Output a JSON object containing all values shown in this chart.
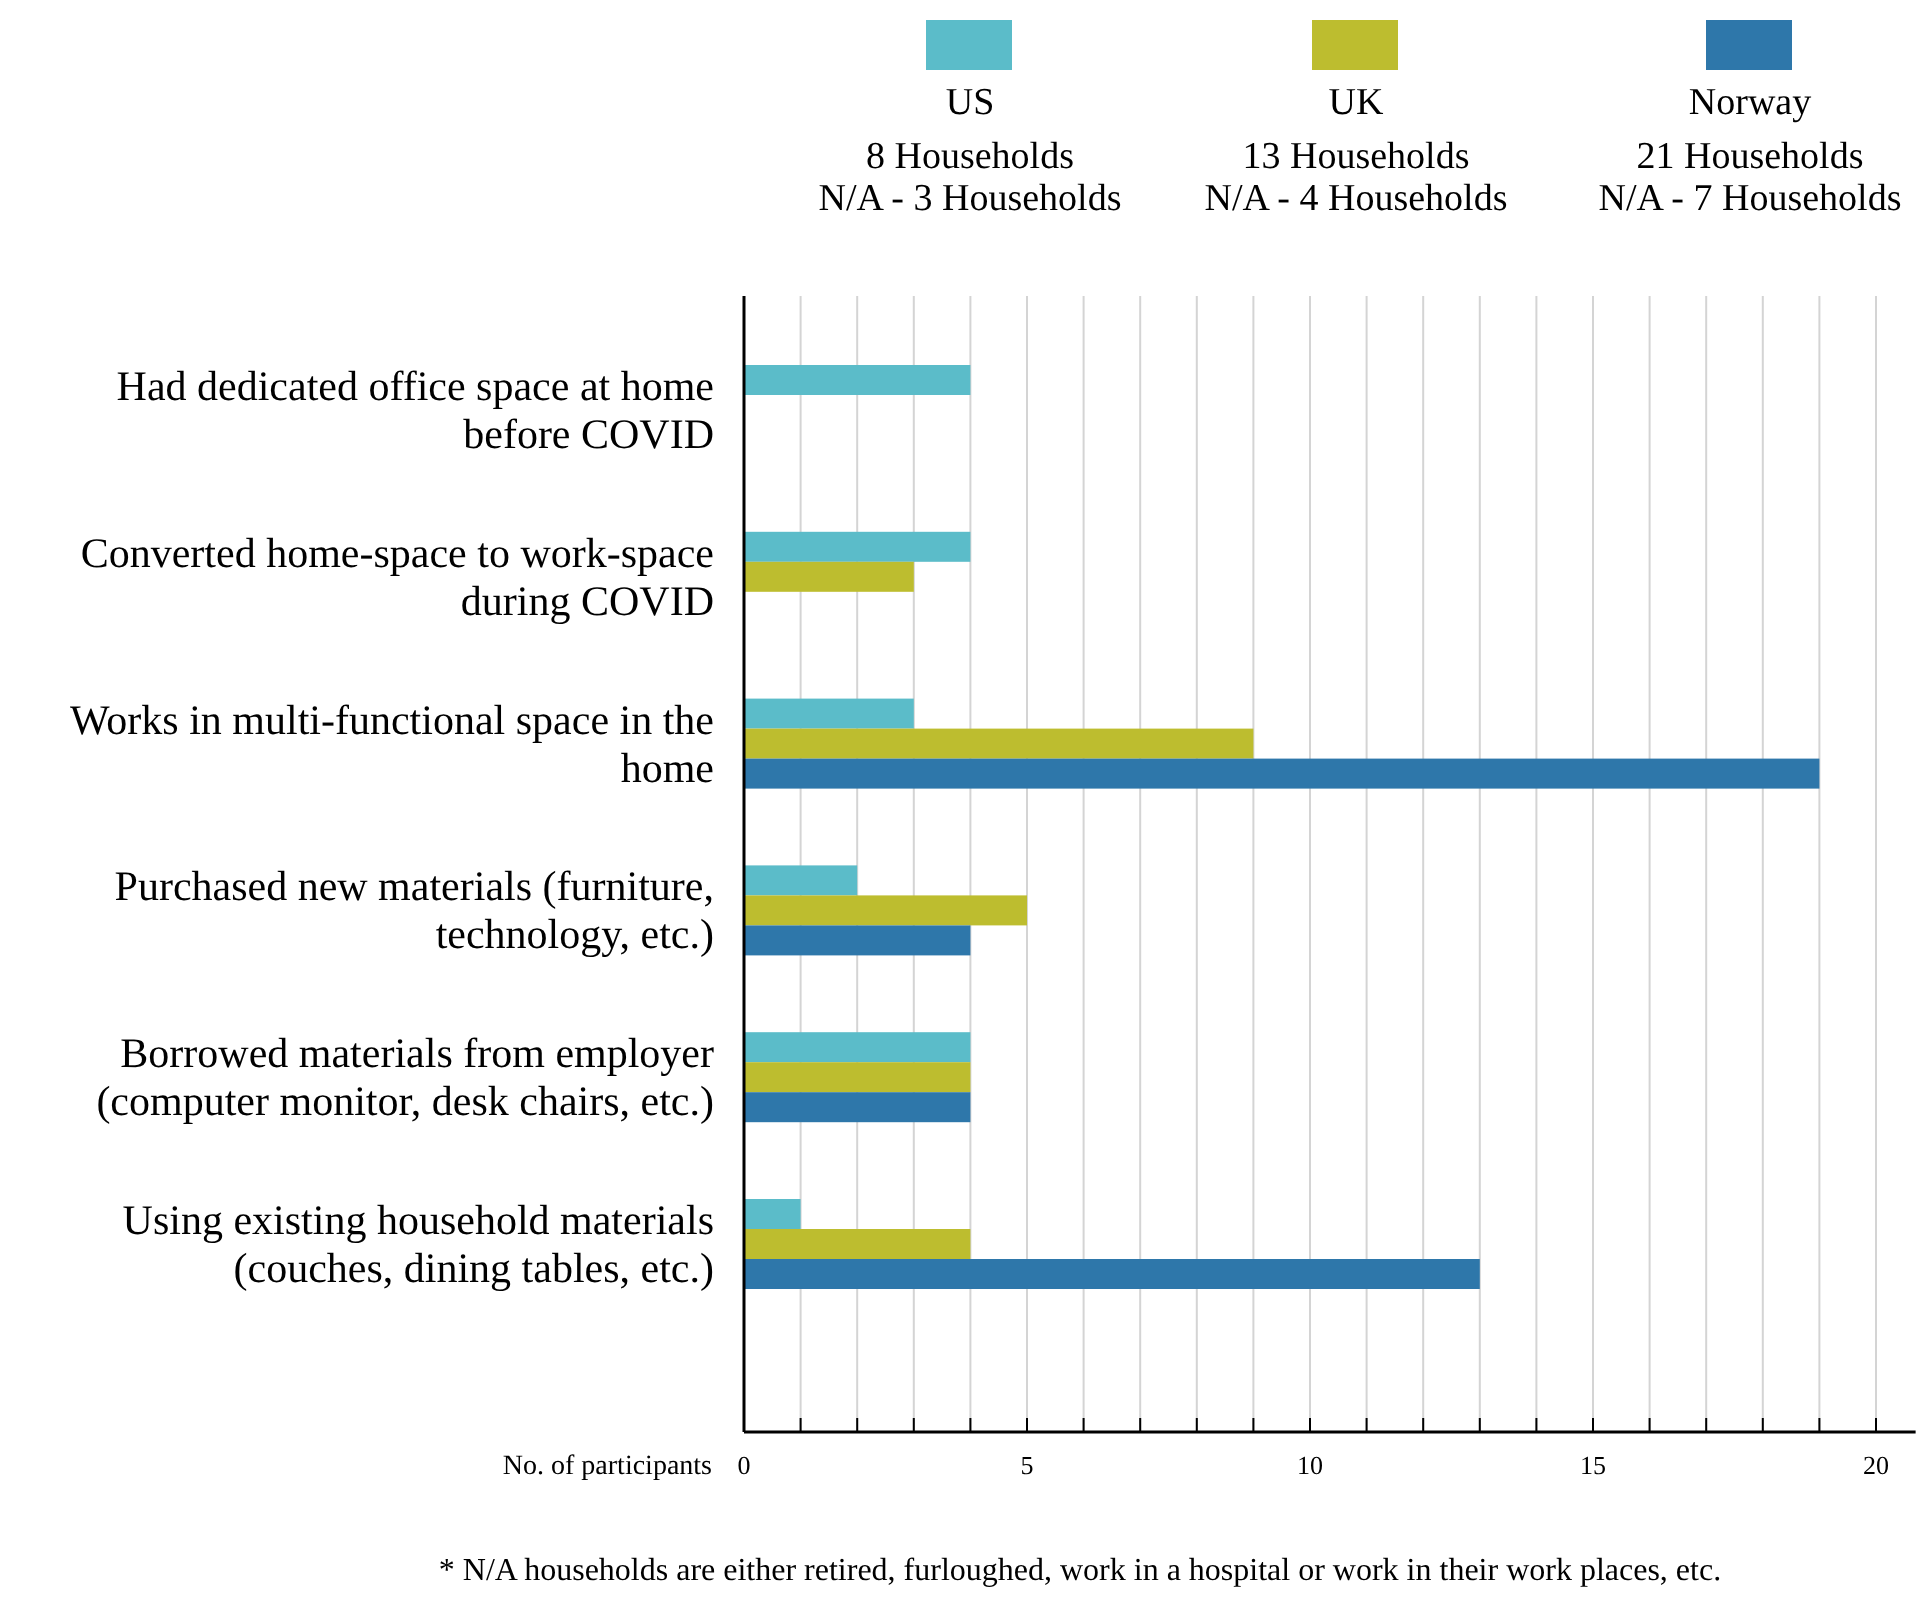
{
  "chart_data": {
    "type": "bar",
    "orientation": "horizontal",
    "categories": [
      "Had dedicated office space at home before COVID",
      "Converted home-space to work-space during COVID",
      "Works in multi-functional space in the home",
      "Purchased new materials (furniture, technology, etc.)",
      "Borrowed materials from employer (computer monitor, desk chairs, etc.)",
      "Using existing household materials (couches, dining tables, etc.)"
    ],
    "series": [
      {
        "name": "US",
        "color": "#5bbcc9",
        "values": [
          4,
          4,
          3,
          2,
          4,
          1
        ]
      },
      {
        "name": "UK",
        "color": "#bdbd2f",
        "values": [
          null,
          3,
          9,
          5,
          4,
          4
        ]
      },
      {
        "name": "Norway",
        "color": "#2e77aa",
        "values": [
          null,
          null,
          19,
          4,
          4,
          13
        ]
      }
    ],
    "xlabel": "No. of participants",
    "xlim": [
      0,
      20.7
    ],
    "xticks": [
      0,
      {
        "value": 1,
        "label": null
      },
      {
        "value": 2,
        "label": null
      },
      {
        "value": 3,
        "label": null
      },
      {
        "value": 4,
        "label": null
      },
      5,
      {
        "value": 6,
        "label": null
      },
      {
        "value": 7,
        "label": null
      },
      {
        "value": 8,
        "label": null
      },
      {
        "value": 9,
        "label": null
      },
      10,
      {
        "value": 11,
        "label": null
      },
      {
        "value": 12,
        "label": null
      },
      {
        "value": 13,
        "label": null
      },
      {
        "value": 14,
        "label": null
      },
      15,
      {
        "value": 16,
        "label": null
      },
      {
        "value": 17,
        "label": null
      },
      {
        "value": 18,
        "label": null
      },
      {
        "value": 19,
        "label": null
      },
      20
    ],
    "grid": "x",
    "legend": "top",
    "annotations": [
      "8 Households\nN/A - 3 Households",
      "13 Households\nN/A - 4 Households",
      "21 Households\nN/A - 7 Households",
      "* N/A households are either retired, furloughed, work in a hospital or work in their work places, etc."
    ]
  }
}
